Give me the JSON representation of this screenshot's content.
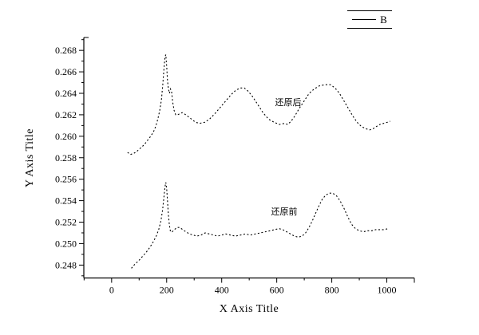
{
  "figure": {
    "background": "#ffffff",
    "foreground": "#000000"
  },
  "chart_data": {
    "type": "line",
    "title": "",
    "xlabel": "X Axis Title",
    "ylabel": "Y Axis Title",
    "xlim": [
      -101,
      1100
    ],
    "ylim": [
      0.2468,
      0.2692
    ],
    "grid": false,
    "x_major_ticks": [
      0,
      200,
      400,
      600,
      800,
      1000
    ],
    "x_minor_step": 100,
    "y_major_ticks": [
      0.248,
      0.25,
      0.252,
      0.254,
      0.256,
      0.258,
      0.26,
      0.262,
      0.264,
      0.266,
      0.268
    ],
    "y_minor_step": 0.001,
    "y_tick_decimals": 3,
    "legend": {
      "position": "top-right",
      "entries": [
        {
          "label": "B",
          "line": "solid"
        }
      ]
    },
    "line_style": "dotted",
    "line_color": "#000000",
    "series": [
      {
        "name": "还原后",
        "points": [
          [
            58,
            0.2585
          ],
          [
            68,
            0.2583
          ],
          [
            80,
            0.2584
          ],
          [
            92,
            0.2586
          ],
          [
            105,
            0.2589
          ],
          [
            118,
            0.2592
          ],
          [
            130,
            0.2596
          ],
          [
            142,
            0.26
          ],
          [
            152,
            0.2604
          ],
          [
            160,
            0.2609
          ],
          [
            168,
            0.2616
          ],
          [
            175,
            0.2624
          ],
          [
            181,
            0.2634
          ],
          [
            186,
            0.2648
          ],
          [
            190,
            0.2662
          ],
          [
            194,
            0.2674
          ],
          [
            197,
            0.2676
          ],
          [
            200,
            0.2665
          ],
          [
            203,
            0.2652
          ],
          [
            206,
            0.2645
          ],
          [
            210,
            0.264
          ],
          [
            214,
            0.2644
          ],
          [
            218,
            0.2641
          ],
          [
            222,
            0.2632
          ],
          [
            227,
            0.2624
          ],
          [
            233,
            0.262
          ],
          [
            240,
            0.262
          ],
          [
            248,
            0.2621
          ],
          [
            256,
            0.2622
          ],
          [
            264,
            0.2621
          ],
          [
            275,
            0.2619
          ],
          [
            290,
            0.2616
          ],
          [
            305,
            0.2613
          ],
          [
            320,
            0.2612
          ],
          [
            338,
            0.2613
          ],
          [
            356,
            0.2616
          ],
          [
            375,
            0.2621
          ],
          [
            395,
            0.2627
          ],
          [
            415,
            0.2633
          ],
          [
            435,
            0.2639
          ],
          [
            452,
            0.2643
          ],
          [
            468,
            0.2645
          ],
          [
            482,
            0.2645
          ],
          [
            496,
            0.2642
          ],
          [
            512,
            0.2637
          ],
          [
            530,
            0.263
          ],
          [
            550,
            0.2622
          ],
          [
            570,
            0.2616
          ],
          [
            590,
            0.2613
          ],
          [
            610,
            0.2611
          ],
          [
            628,
            0.2612
          ],
          [
            640,
            0.2611
          ],
          [
            652,
            0.2614
          ],
          [
            666,
            0.2619
          ],
          [
            682,
            0.2626
          ],
          [
            700,
            0.2633
          ],
          [
            718,
            0.264
          ],
          [
            736,
            0.2644
          ],
          [
            755,
            0.2647
          ],
          [
            775,
            0.2648
          ],
          [
            795,
            0.2648
          ],
          [
            812,
            0.2645
          ],
          [
            828,
            0.264
          ],
          [
            844,
            0.2633
          ],
          [
            860,
            0.2626
          ],
          [
            876,
            0.2619
          ],
          [
            892,
            0.2613
          ],
          [
            908,
            0.2609
          ],
          [
            924,
            0.2607
          ],
          [
            938,
            0.2606
          ],
          [
            950,
            0.2607
          ],
          [
            962,
            0.2609
          ],
          [
            975,
            0.2611
          ],
          [
            988,
            0.2612
          ],
          [
            1002,
            0.2613
          ],
          [
            1012,
            0.2614
          ]
        ]
      },
      {
        "name": "还原前",
        "points": [
          [
            72,
            0.2477
          ],
          [
            85,
            0.2481
          ],
          [
            98,
            0.2484
          ],
          [
            112,
            0.2488
          ],
          [
            126,
            0.2492
          ],
          [
            140,
            0.2497
          ],
          [
            152,
            0.2502
          ],
          [
            162,
            0.2507
          ],
          [
            171,
            0.2513
          ],
          [
            179,
            0.2521
          ],
          [
            185,
            0.2531
          ],
          [
            190,
            0.2543
          ],
          [
            194,
            0.2553
          ],
          [
            197,
            0.2557
          ],
          [
            200,
            0.2551
          ],
          [
            203,
            0.254
          ],
          [
            206,
            0.2528
          ],
          [
            210,
            0.2517
          ],
          [
            214,
            0.2511
          ],
          [
            220,
            0.2511
          ],
          [
            228,
            0.2513
          ],
          [
            238,
            0.2515
          ],
          [
            248,
            0.2515
          ],
          [
            258,
            0.2513
          ],
          [
            270,
            0.2511
          ],
          [
            283,
            0.2509
          ],
          [
            296,
            0.2508
          ],
          [
            310,
            0.2507
          ],
          [
            325,
            0.2508
          ],
          [
            340,
            0.251
          ],
          [
            355,
            0.2509
          ],
          [
            370,
            0.2508
          ],
          [
            385,
            0.2507
          ],
          [
            400,
            0.2508
          ],
          [
            415,
            0.2509
          ],
          [
            432,
            0.2508
          ],
          [
            450,
            0.2507
          ],
          [
            468,
            0.2508
          ],
          [
            486,
            0.2509
          ],
          [
            504,
            0.2508
          ],
          [
            522,
            0.2509
          ],
          [
            540,
            0.251
          ],
          [
            558,
            0.2511
          ],
          [
            576,
            0.2512
          ],
          [
            592,
            0.2513
          ],
          [
            608,
            0.2514
          ],
          [
            622,
            0.2513
          ],
          [
            636,
            0.2511
          ],
          [
            650,
            0.2509
          ],
          [
            664,
            0.2507
          ],
          [
            678,
            0.2506
          ],
          [
            692,
            0.2507
          ],
          [
            705,
            0.251
          ],
          [
            717,
            0.2515
          ],
          [
            729,
            0.2521
          ],
          [
            741,
            0.2528
          ],
          [
            753,
            0.2535
          ],
          [
            765,
            0.2541
          ],
          [
            777,
            0.2545
          ],
          [
            790,
            0.2547
          ],
          [
            803,
            0.2547
          ],
          [
            816,
            0.2545
          ],
          [
            830,
            0.254
          ],
          [
            844,
            0.2533
          ],
          [
            858,
            0.2525
          ],
          [
            872,
            0.2518
          ],
          [
            886,
            0.2514
          ],
          [
            900,
            0.2512
          ],
          [
            915,
            0.2511
          ],
          [
            930,
            0.2512
          ],
          [
            945,
            0.2512
          ],
          [
            960,
            0.2513
          ],
          [
            975,
            0.2513
          ],
          [
            990,
            0.2513
          ],
          [
            1005,
            0.2514
          ]
        ]
      }
    ],
    "annotations": [
      {
        "text": "还原后",
        "x": 640,
        "y": 0.2632
      },
      {
        "text": "还原前",
        "x": 625,
        "y": 0.253
      }
    ]
  }
}
